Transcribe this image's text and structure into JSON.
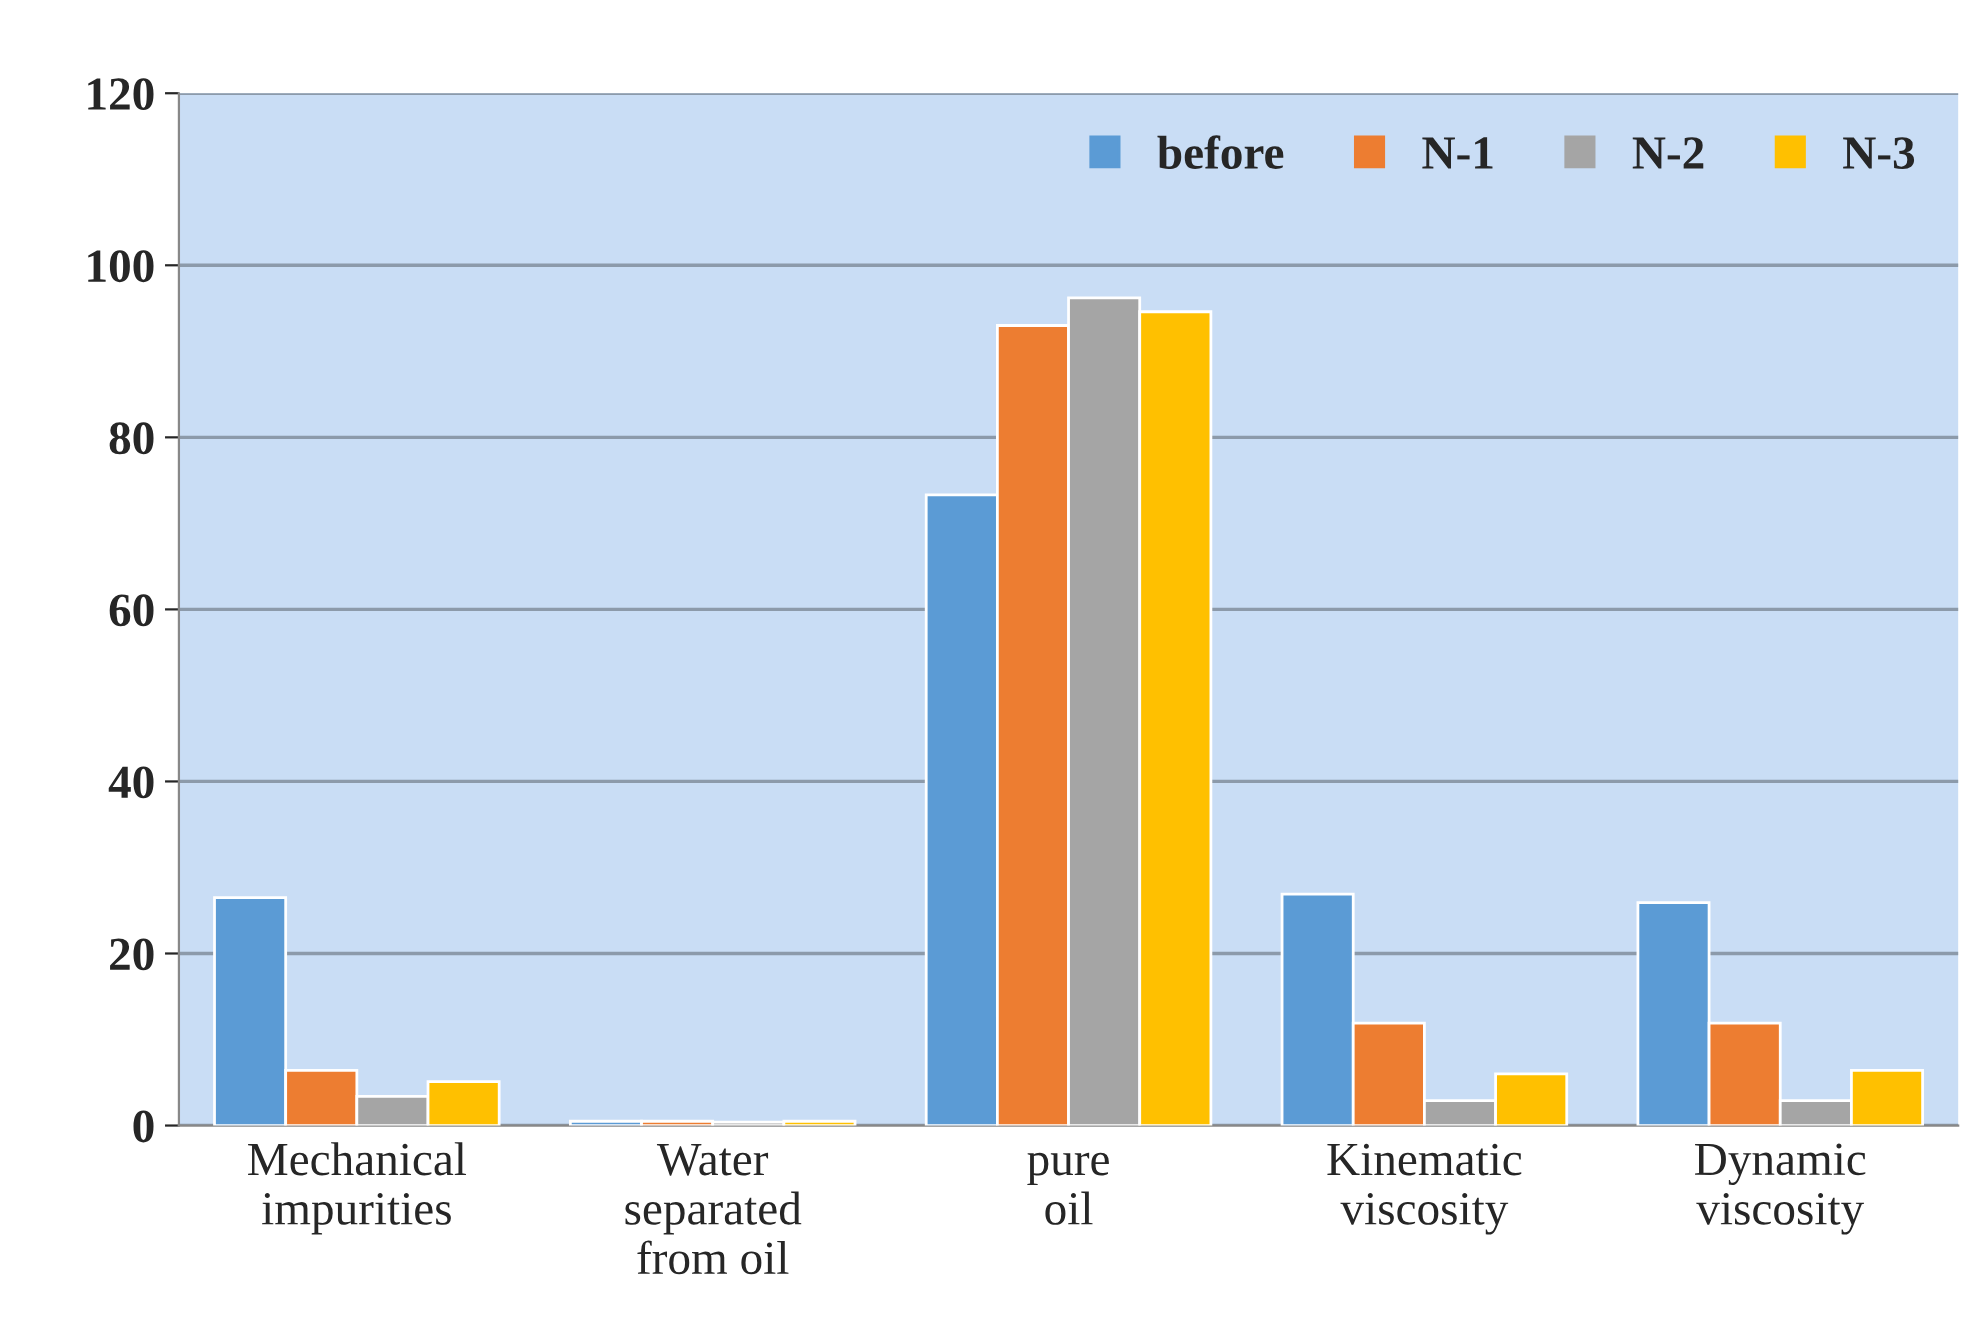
{
  "chart_data": {
    "type": "bar",
    "categories": [
      "Mechanical\nimpurities",
      "Water\nseparated\nfrom oil",
      "pure\noil",
      "Kinematic\nviscosity",
      "Dynamic\nviscosity"
    ],
    "series": [
      {
        "name": "before",
        "color": "#5b9bd5",
        "values": [
          26.5,
          0.5,
          73.3,
          26.9,
          25.9
        ]
      },
      {
        "name": "N-1",
        "color": "#ed7d31",
        "values": [
          6.4,
          0.5,
          93.0,
          11.9,
          11.9
        ]
      },
      {
        "name": "N-2",
        "color": "#a5a5a5",
        "values": [
          3.4,
          0.4,
          96.2,
          2.9,
          2.9
        ]
      },
      {
        "name": "N-3",
        "color": "#ffc000",
        "values": [
          5.1,
          0.5,
          94.6,
          6.0,
          6.4
        ]
      }
    ],
    "ylim": [
      0,
      120
    ],
    "yticks": [
      0,
      20,
      40,
      60,
      80,
      100,
      120
    ],
    "grid": "y",
    "legend": "top right"
  }
}
